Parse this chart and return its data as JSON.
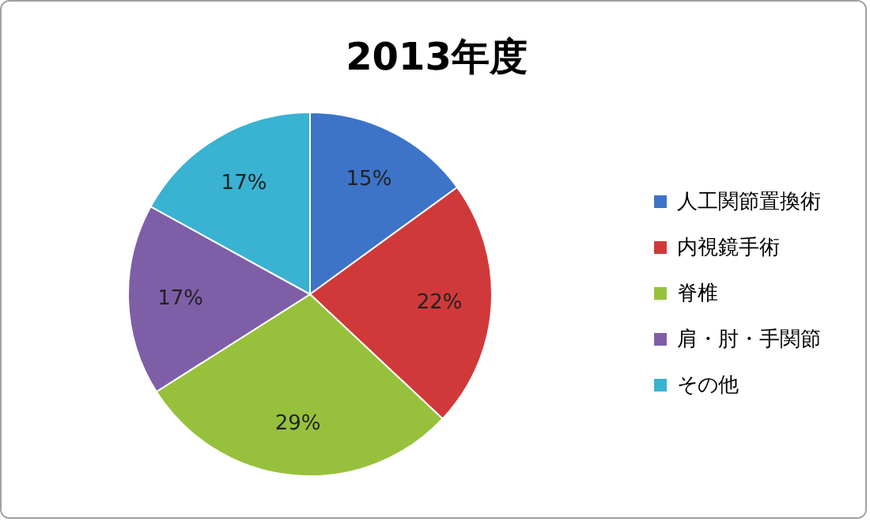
{
  "chart_data": {
    "type": "pie",
    "title": "2013年度",
    "categories": [
      "人工関節置換術",
      "内視鏡手術",
      "脊椎",
      "肩・肘・手関節",
      "その他"
    ],
    "values": [
      15,
      22,
      29,
      17,
      17
    ],
    "colors": [
      "#3d74c8",
      "#d0393a",
      "#97c13c",
      "#7f5ea8",
      "#3ab2d2"
    ],
    "value_labels": [
      "15%",
      "22%",
      "29%",
      "17%",
      "17%"
    ],
    "legend": "right"
  }
}
